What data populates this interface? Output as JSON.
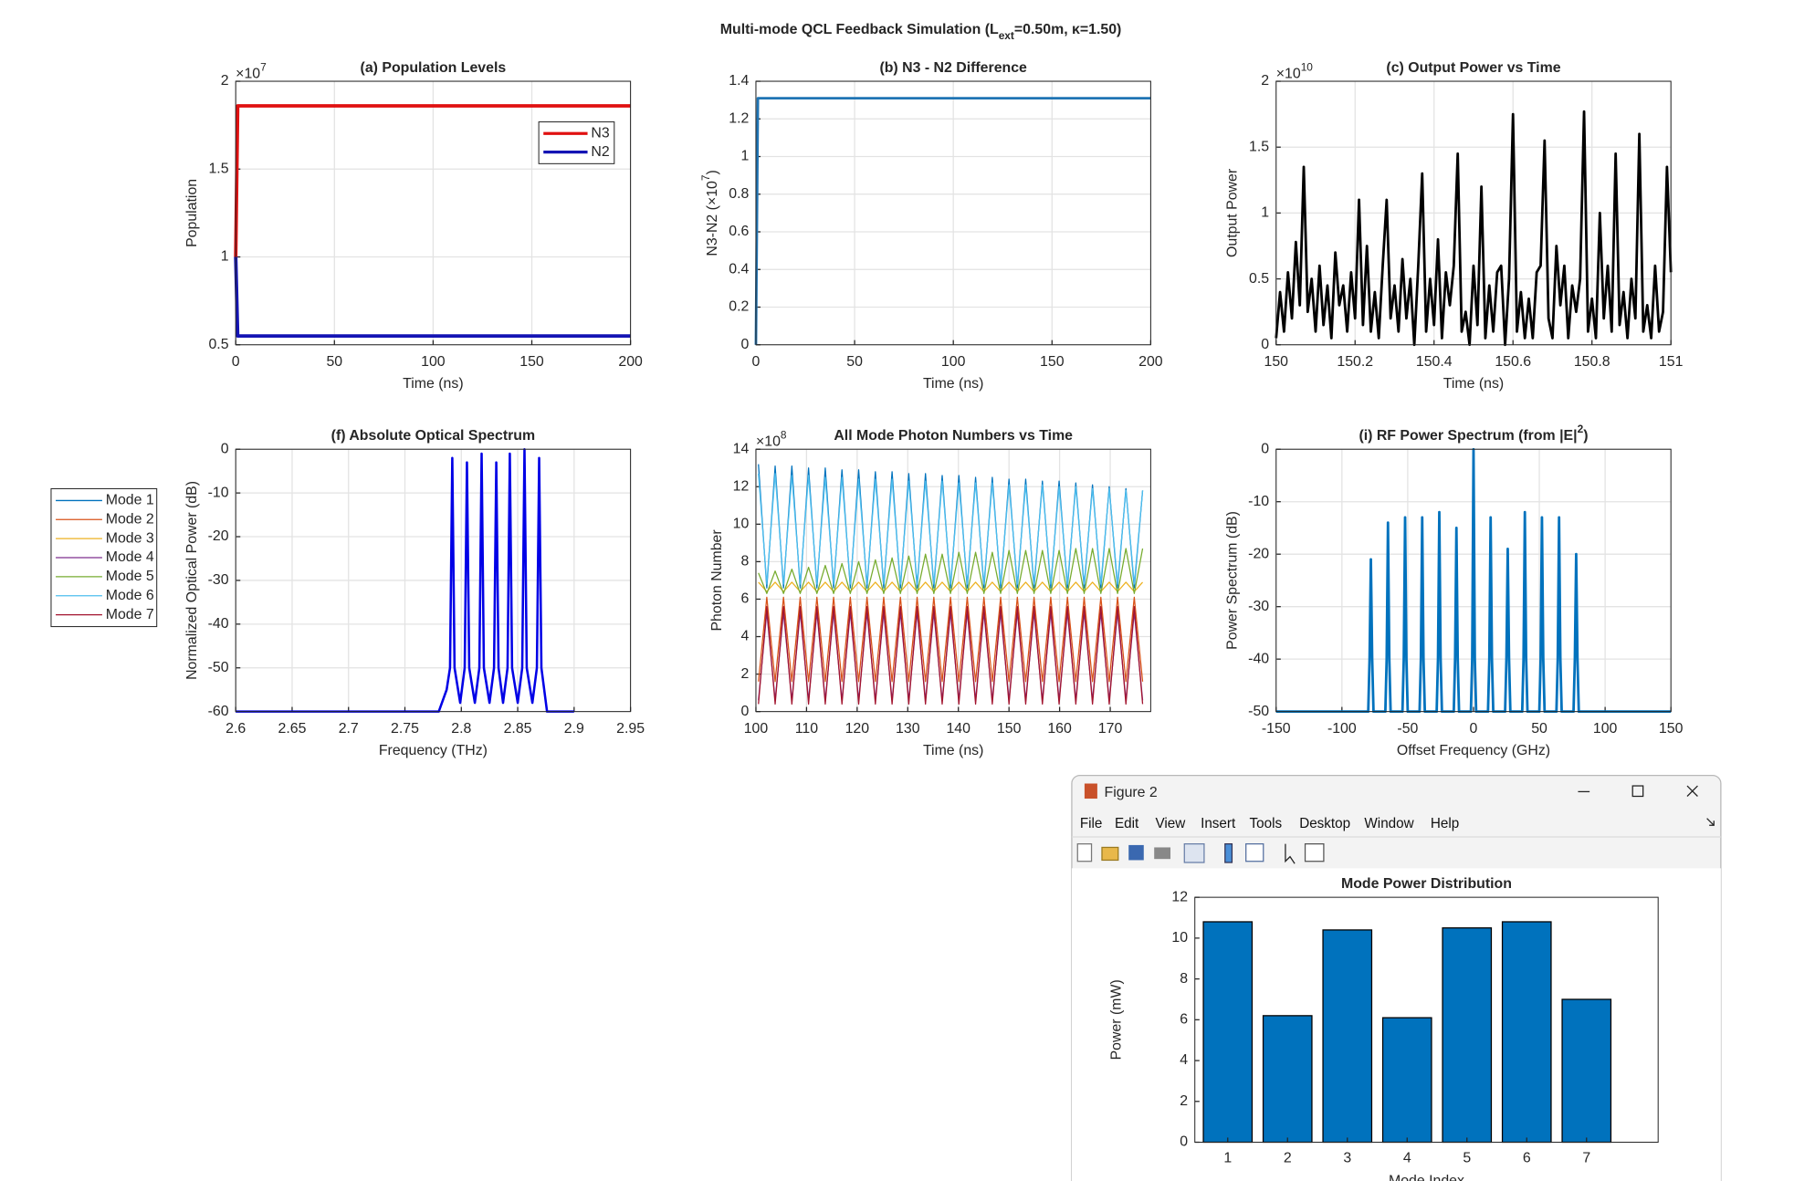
{
  "figure": {
    "title": "Multi-mode QCL Feedback Simulation (L",
    "title_sub": "ext",
    "title_end": "=0.50m, κ=1.50)"
  },
  "window": {
    "title": "Figure 2",
    "menus": [
      "File",
      "Edit",
      "View",
      "Insert",
      "Tools",
      "Desktop",
      "Window",
      "Help"
    ]
  },
  "chart_data": [
    {
      "type": "line",
      "title": "(a) Population Levels",
      "xlabel": "Time (ns)",
      "ylabel": "Population",
      "y_exponent": "×10",
      "y_exponent_sup": "7",
      "x": [
        0,
        1,
        200
      ],
      "xlim": [
        0,
        200
      ],
      "ylim": [
        0.5,
        2
      ],
      "xticks": [
        0,
        50,
        100,
        150,
        200
      ],
      "yticks": [
        0.5,
        1,
        1.5,
        2
      ],
      "grid": true,
      "legend": "northeast",
      "series": [
        {
          "name": "N3",
          "color": "#e01010",
          "values": [
            1.0,
            1.86,
            1.86
          ]
        },
        {
          "name": "N2",
          "color": "#1414b4",
          "values": [
            1.0,
            0.55,
            0.55
          ]
        }
      ]
    },
    {
      "type": "line",
      "title": "(b) N3 - N2 Difference",
      "xlabel": "Time (ns)",
      "ylabel": "N3-N2 (×10",
      "ylabel_sup": "7",
      "ylabel_end": ")",
      "x": [
        0,
        1,
        200
      ],
      "xlim": [
        0,
        200
      ],
      "ylim": [
        0,
        1.4
      ],
      "xticks": [
        0,
        50,
        100,
        150,
        200
      ],
      "yticks": [
        0,
        0.2,
        0.4,
        0.6,
        0.8,
        1,
        1.2,
        1.4
      ],
      "grid": true,
      "series": [
        {
          "color": "#1f74b4",
          "values": [
            0,
            1.31,
            1.31
          ]
        }
      ]
    },
    {
      "type": "line",
      "title": "(c) Output Power vs Time",
      "xlabel": "Time (ns)",
      "ylabel": "Output Power",
      "y_exponent": "×10",
      "y_exponent_sup": "10",
      "x": [
        150,
        150.01,
        150.02,
        150.03,
        150.04,
        150.05,
        150.06,
        150.07,
        150.08,
        150.09,
        150.1,
        150.11,
        150.12,
        150.13,
        150.14,
        150.15,
        150.16,
        150.17,
        150.18,
        150.19,
        150.2,
        150.21,
        150.22,
        150.23,
        150.24,
        150.25,
        150.26,
        150.27,
        150.28,
        150.29,
        150.3,
        150.31,
        150.32,
        150.33,
        150.34,
        150.35,
        150.36,
        150.37,
        150.38,
        150.39,
        150.4,
        150.41,
        150.42,
        150.43,
        150.44,
        150.45,
        150.46,
        150.47,
        150.48,
        150.49,
        150.5,
        150.51,
        150.52,
        150.53,
        150.54,
        150.55,
        150.56,
        150.57,
        150.58,
        150.59,
        150.6,
        150.61,
        150.62,
        150.63,
        150.64,
        150.65,
        150.66,
        150.67,
        150.68,
        150.69,
        150.7,
        150.71,
        150.72,
        150.73,
        150.74,
        150.75,
        150.76,
        150.77,
        150.78,
        150.79,
        150.8,
        150.81,
        150.82,
        150.83,
        150.84,
        150.85,
        150.86,
        150.87,
        150.88,
        150.89,
        150.9,
        150.91,
        150.92,
        150.93,
        150.94,
        150.95,
        150.96,
        150.97,
        150.98,
        150.99,
        151
      ],
      "xlim": [
        150,
        151
      ],
      "ylim": [
        0,
        2
      ],
      "xticks": [
        150,
        150.2,
        150.4,
        150.6,
        150.8,
        151
      ],
      "yticks": [
        0,
        0.5,
        1,
        1.5,
        2
      ],
      "grid": true,
      "series": [
        {
          "color": "#000000",
          "values": [
            0.05,
            0.4,
            0.1,
            0.55,
            0.2,
            0.78,
            0.3,
            1.35,
            0.25,
            0.5,
            0.1,
            0.6,
            0.15,
            0.45,
            0.05,
            0.7,
            0.3,
            0.45,
            0.1,
            0.55,
            0.2,
            1.1,
            0.15,
            0.75,
            0.1,
            0.4,
            0.05,
            0.6,
            1.1,
            0.2,
            0.45,
            0.1,
            0.65,
            0.2,
            0.5,
            0.0,
            0.6,
            1.3,
            0.1,
            0.5,
            0.15,
            0.8,
            0.05,
            0.55,
            0.3,
            0.6,
            1.45,
            0.1,
            0.25,
            0.0,
            0.6,
            0.15,
            1.2,
            0.05,
            0.45,
            0.1,
            0.55,
            0.6,
            0.0,
            0.5,
            1.75,
            0.1,
            0.4,
            0.05,
            0.35,
            0.05,
            0.55,
            0.6,
            1.55,
            0.2,
            0.05,
            0.75,
            0.3,
            0.6,
            0.05,
            0.45,
            0.25,
            0.5,
            1.77,
            0.1,
            0.35,
            0.05,
            1.0,
            0.2,
            0.6,
            0.1,
            1.45,
            0.15,
            0.4,
            0.05,
            0.5,
            0.2,
            1.6,
            0.1,
            0.3,
            0.05,
            0.6,
            0.1,
            0.25,
            1.35,
            0.55
          ]
        }
      ]
    },
    {
      "type": "line",
      "title": "(f) Absolute Optical Spectrum",
      "xlabel": "Frequency (THz)",
      "ylabel": "Normalized Optical Power (dB)",
      "x": [
        2.6,
        2.78,
        2.787,
        2.79,
        2.792,
        2.794,
        2.799,
        2.803,
        2.805,
        2.807,
        2.812,
        2.816,
        2.818,
        2.82,
        2.825,
        2.829,
        2.831,
        2.833,
        2.837,
        2.841,
        2.843,
        2.845,
        2.85,
        2.854,
        2.856,
        2.858,
        2.863,
        2.867,
        2.869,
        2.871,
        2.876,
        2.9
      ],
      "xlim": [
        2.6,
        2.95
      ],
      "ylim": [
        -60,
        0
      ],
      "xticks": [
        2.6,
        2.65,
        2.7,
        2.75,
        2.8,
        2.85,
        2.9,
        2.95
      ],
      "yticks": [
        -60,
        -50,
        -40,
        -30,
        -20,
        -10,
        0
      ],
      "grid": true,
      "series": [
        {
          "color": "#0000e6",
          "values": [
            -60,
            -60,
            -55,
            -50,
            -2,
            -50,
            -58,
            -50,
            -3,
            -50,
            -58,
            -50,
            -1,
            -50,
            -58,
            -50,
            -3,
            -50,
            -58,
            -50,
            -1,
            -50,
            -58,
            -50,
            0,
            -50,
            -58,
            -50,
            -2,
            -50,
            -60,
            -60
          ]
        }
      ]
    },
    {
      "type": "line",
      "title": "All Mode Photon Numbers vs Time",
      "xlabel": "Time (ns)",
      "ylabel": "Photon Number",
      "y_exponent": "×10",
      "y_exponent_sup": "8",
      "x": [
        100.5,
        102.15,
        103.8,
        105.45,
        107.1,
        108.75,
        110.4,
        112.05,
        113.7,
        115.35,
        117,
        118.65,
        120.3,
        121.95,
        123.6,
        125.25,
        126.9,
        128.55,
        130.2,
        131.85,
        133.5,
        135.15,
        136.8,
        138.45,
        140.1,
        141.75,
        143.4,
        145.05,
        146.7,
        148.35,
        150,
        151.65,
        153.3,
        154.95,
        156.6,
        158.25,
        159.9,
        161.55,
        163.2,
        164.85,
        166.5,
        168.15,
        169.8,
        171.45,
        173.1,
        174.75,
        176.4
      ],
      "xlim": [
        100,
        178
      ],
      "ylim": [
        0,
        14
      ],
      "xticks": [
        100,
        110,
        120,
        130,
        140,
        150,
        160,
        170
      ],
      "yticks": [
        0,
        2,
        4,
        6,
        8,
        10,
        12,
        14
      ],
      "grid": true,
      "legend": "outside-west",
      "series": [
        {
          "name": "Mode 1",
          "color": "#0072bd",
          "values": [
            13.2,
            6.6,
            13.1,
            6.6,
            13.1,
            6.6,
            13.0,
            6.6,
            13.0,
            6.6,
            12.9,
            6.6,
            12.9,
            6.6,
            12.8,
            6.6,
            12.8,
            6.6,
            12.7,
            6.6,
            12.7,
            6.6,
            12.6,
            6.6,
            12.6,
            6.6,
            12.5,
            6.6,
            12.5,
            6.6,
            12.4,
            6.6,
            12.4,
            6.6,
            12.3,
            6.6,
            12.3,
            6.6,
            12.2,
            6.6,
            12.1,
            6.6,
            12.0,
            6.6,
            11.9,
            6.6,
            11.8
          ]
        },
        {
          "name": "Mode 2",
          "color": "#d95319",
          "values": [
            1.6,
            6.1,
            1.6,
            6.1,
            1.6,
            6.1,
            1.6,
            6.1,
            1.6,
            6.1,
            1.6,
            6.1,
            1.6,
            6.1,
            1.6,
            6.1,
            1.6,
            6.1,
            1.6,
            6.1,
            1.6,
            6.1,
            1.6,
            6.1,
            1.6,
            6.1,
            1.6,
            6.1,
            1.6,
            6.1,
            1.6,
            6.1,
            1.6,
            6.1,
            1.6,
            6.1,
            1.6,
            6.1,
            1.6,
            6.1,
            1.6,
            6.1,
            1.6,
            6.1,
            1.6,
            6.1,
            1.6
          ]
        },
        {
          "name": "Mode 3",
          "color": "#edb120",
          "values": [
            6.9,
            6.4,
            6.9,
            6.4,
            6.9,
            6.4,
            6.9,
            6.4,
            6.9,
            6.4,
            6.9,
            6.4,
            6.9,
            6.4,
            6.9,
            6.4,
            6.9,
            6.4,
            6.9,
            6.4,
            6.9,
            6.4,
            6.9,
            6.4,
            6.9,
            6.4,
            6.9,
            6.4,
            6.9,
            6.4,
            6.9,
            6.4,
            6.9,
            6.4,
            6.9,
            6.4,
            6.9,
            6.4,
            6.9,
            6.4,
            6.9,
            6.4,
            6.9,
            6.4,
            6.9,
            6.4,
            6.9
          ]
        },
        {
          "name": "Mode 4",
          "color": "#7e2f8e",
          "values": [
            0.6,
            5.3,
            0.6,
            5.3,
            0.6,
            5.3,
            0.6,
            5.3,
            0.6,
            5.3,
            0.6,
            5.3,
            0.6,
            5.3,
            0.6,
            5.3,
            0.6,
            5.3,
            0.6,
            5.3,
            0.6,
            5.3,
            0.6,
            5.3,
            0.6,
            5.3,
            0.6,
            5.3,
            0.6,
            5.3,
            0.6,
            5.3,
            0.6,
            5.3,
            0.6,
            5.3,
            0.6,
            5.3,
            0.6,
            5.3,
            0.6,
            5.3,
            0.6,
            5.3,
            0.6,
            5.3,
            0.6
          ]
        },
        {
          "name": "Mode 5",
          "color": "#77ac30",
          "values": [
            7.4,
            6.3,
            7.5,
            6.3,
            7.6,
            6.3,
            7.7,
            6.3,
            7.8,
            6.3,
            7.9,
            6.3,
            8.0,
            6.3,
            8.1,
            6.3,
            8.2,
            6.3,
            8.3,
            6.3,
            8.4,
            6.3,
            8.4,
            6.3,
            8.5,
            6.3,
            8.5,
            6.3,
            8.5,
            6.3,
            8.6,
            6.3,
            8.6,
            6.3,
            8.6,
            6.3,
            8.6,
            6.3,
            8.7,
            6.3,
            8.7,
            6.3,
            8.7,
            6.3,
            8.7,
            6.3,
            8.7
          ]
        },
        {
          "name": "Mode 6",
          "color": "#4dbeee",
          "values": [
            12.7,
            6.8,
            12.7,
            6.8,
            12.6,
            6.8,
            12.6,
            6.8,
            12.5,
            6.8,
            12.5,
            6.8,
            12.4,
            6.8,
            12.4,
            6.8,
            12.4,
            6.8,
            12.3,
            6.8,
            12.3,
            6.8,
            12.3,
            6.8,
            12.2,
            6.8,
            12.2,
            6.8,
            12.2,
            6.8,
            12.1,
            6.8,
            12.1,
            6.8,
            12.1,
            6.8,
            12.0,
            6.8,
            12.0,
            6.8,
            11.9,
            6.8,
            11.9,
            6.8,
            11.8,
            6.8,
            11.8
          ]
        },
        {
          "name": "Mode 7",
          "color": "#a2142f",
          "values": [
            0.4,
            5.6,
            0.4,
            5.6,
            0.4,
            5.6,
            0.4,
            5.6,
            0.4,
            5.6,
            0.4,
            5.6,
            0.4,
            5.6,
            0.4,
            5.6,
            0.4,
            5.6,
            0.4,
            5.6,
            0.4,
            5.6,
            0.4,
            5.6,
            0.4,
            5.6,
            0.4,
            5.6,
            0.4,
            5.6,
            0.4,
            5.6,
            0.4,
            5.6,
            0.4,
            5.6,
            0.4,
            5.6,
            0.4,
            5.6,
            0.4,
            5.6,
            0.4,
            5.6,
            0.4,
            5.6,
            0.4
          ]
        }
      ]
    },
    {
      "type": "line",
      "title": "(i) RF Power Spectrum (from |E|",
      "title_sup": "2",
      "title_end": ")",
      "xlabel": "Offset Frequency (GHz)",
      "ylabel": "Power Spectrum (dB)",
      "x": [
        -150,
        -80,
        -79,
        -78,
        -77,
        -76,
        -67,
        -66,
        -65,
        -64,
        -63,
        -54,
        -53,
        -52,
        -51,
        -50,
        -41,
        -40,
        -39,
        -38,
        -37,
        -28,
        -27,
        -26,
        -25,
        -24,
        -15,
        -14,
        -13,
        -12,
        -11,
        -2,
        -1,
        0,
        1,
        2,
        11,
        12,
        13,
        14,
        15,
        24,
        25,
        26,
        27,
        28,
        37,
        38,
        39,
        40,
        41,
        50,
        51,
        52,
        53,
        54,
        63,
        64,
        65,
        66,
        67,
        76,
        77,
        78,
        79,
        80,
        150
      ],
      "xlim": [
        -150,
        150
      ],
      "ylim": [
        -50,
        0
      ],
      "xticks": [
        -150,
        -100,
        -50,
        0,
        50,
        100,
        150
      ],
      "yticks": [
        -50,
        -40,
        -30,
        -20,
        -10,
        0
      ],
      "grid": true,
      "series": [
        {
          "color": "#0072bd",
          "values": [
            -50,
            -50,
            -40,
            -21,
            -40,
            -50,
            -50,
            -40,
            -14,
            -40,
            -50,
            -50,
            -40,
            -13,
            -40,
            -50,
            -50,
            -40,
            -13,
            -40,
            -50,
            -50,
            -40,
            -12,
            -40,
            -50,
            -50,
            -40,
            -15,
            -40,
            -50,
            -50,
            -40,
            0,
            -40,
            -50,
            -50,
            -40,
            -13,
            -40,
            -50,
            -50,
            -40,
            -19,
            -40,
            -50,
            -50,
            -40,
            -12,
            -40,
            -50,
            -50,
            -40,
            -13,
            -40,
            -50,
            -50,
            -40,
            -13,
            -40,
            -50,
            -50,
            -40,
            -20,
            -40,
            -50,
            -50
          ]
        }
      ]
    },
    {
      "type": "bar",
      "title": "Mode Power Distribution",
      "xlabel": "Mode Index",
      "ylabel": "Power (mW)",
      "categories": [
        "1",
        "2",
        "3",
        "4",
        "5",
        "6",
        "7"
      ],
      "values": [
        10.8,
        6.2,
        10.4,
        6.1,
        10.5,
        10.8,
        7.0
      ],
      "color": "#0072bd",
      "ylim": [
        0,
        12
      ],
      "yticks": [
        0,
        2,
        4,
        6,
        8,
        10,
        12
      ],
      "grid": false
    }
  ]
}
